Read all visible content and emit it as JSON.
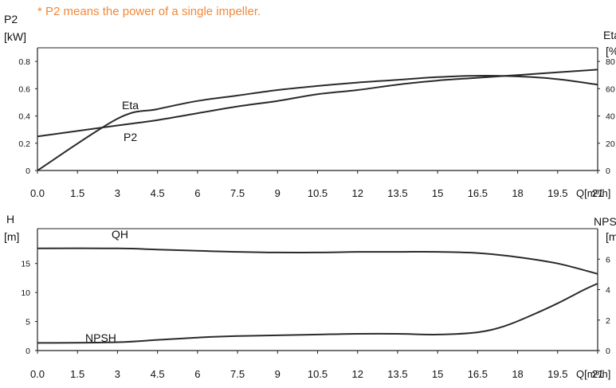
{
  "note": "* P2 means the power of a single impeller.",
  "chart_data": [
    {
      "type": "line",
      "x_label": "Q[m³/h]",
      "x_ticks": [
        "0.0",
        "1.5",
        "3",
        "4.5",
        "6",
        "7.5",
        "9",
        "10.5",
        "12",
        "13.5",
        "15",
        "16.5",
        "18",
        "19.5",
        "21"
      ],
      "xlim": [
        0,
        21
      ],
      "y_left": {
        "label_line1": "P2",
        "label_line2": "[kW]",
        "ticks": [
          "0",
          "0.2",
          "0.4",
          "0.6",
          "0.8"
        ],
        "ylim": [
          0,
          0.9
        ]
      },
      "y_right": {
        "label_line1": "Eta",
        "label_line2": "[%]",
        "ticks": [
          "0",
          "20",
          "40",
          "60",
          "80"
        ],
        "ylim": [
          0,
          90
        ]
      },
      "series": [
        {
          "name": "Eta",
          "axis": "right",
          "x": [
            0,
            3,
            4.5,
            6,
            7.5,
            9,
            10.5,
            12,
            13.5,
            15,
            16.5,
            18,
            19.5,
            21
          ],
          "y": [
            0,
            38,
            45,
            51,
            55,
            59,
            62,
            64.5,
            66.5,
            68.5,
            69.5,
            69,
            67,
            63
          ]
        },
        {
          "name": "P2",
          "axis": "left",
          "x": [
            0,
            3,
            4.5,
            6,
            7.5,
            9,
            10.5,
            12,
            13.5,
            15,
            16.5,
            18,
            19.5,
            21
          ],
          "y": [
            0.25,
            0.33,
            0.37,
            0.42,
            0.47,
            0.51,
            0.56,
            0.59,
            0.63,
            0.66,
            0.68,
            0.7,
            0.72,
            0.74
          ]
        }
      ]
    },
    {
      "type": "line",
      "x_label": "Q[m³/h]",
      "x_ticks": [
        "0.0",
        "1.5",
        "3",
        "4.5",
        "6",
        "7.5",
        "9",
        "10.5",
        "12",
        "13.5",
        "15",
        "16.5",
        "18",
        "19.5",
        "21"
      ],
      "xlim": [
        0,
        21
      ],
      "y_left": {
        "label_line1": "H",
        "label_line2": "[m]",
        "ticks": [
          "0",
          "5",
          "10",
          "15"
        ],
        "ylim": [
          0,
          21
        ]
      },
      "y_right": {
        "label_line1": "NPSH",
        "label_line2": "[m]",
        "ticks": [
          "0",
          "2",
          "4",
          "6"
        ],
        "ylim": [
          0,
          8
        ]
      },
      "series": [
        {
          "name": "QH",
          "axis": "left",
          "x": [
            0,
            3,
            4.5,
            6,
            7.5,
            9,
            10.5,
            12,
            13.5,
            15,
            16.5,
            18,
            19.5,
            21
          ],
          "y": [
            17.6,
            17.6,
            17.4,
            17.2,
            17.0,
            16.9,
            16.9,
            17.0,
            17.0,
            17.0,
            16.8,
            16.1,
            15.0,
            13.2
          ]
        },
        {
          "name": "NPSH",
          "axis": "right",
          "x": [
            0,
            3,
            4.5,
            6,
            7.5,
            9,
            10.5,
            12,
            13.5,
            15,
            16.5,
            17.5,
            18.5,
            19.5,
            20.5,
            21
          ],
          "y": [
            0.5,
            0.55,
            0.7,
            0.85,
            0.95,
            1.0,
            1.05,
            1.1,
            1.1,
            1.05,
            1.2,
            1.6,
            2.3,
            3.1,
            4.0,
            4.4
          ]
        }
      ]
    }
  ]
}
